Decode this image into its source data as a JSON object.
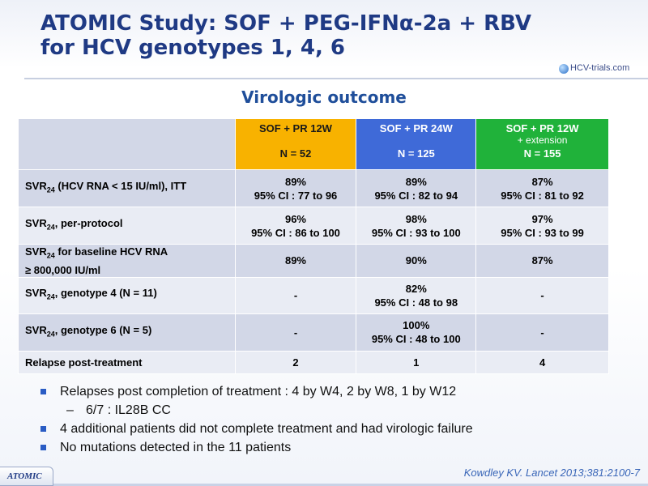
{
  "header": {
    "title_line1": "ATOMIC Study: SOF + PEG-IFNα-2a + RBV",
    "title_line2": "for HCV genotypes 1, 4, 6",
    "logo_text": "HCV-trials.com"
  },
  "subtitle": "Virologic outcome",
  "table": {
    "columns": [
      {
        "line1": "SOF + PR 12W",
        "line2": "",
        "n": "N = 52",
        "color": "#f8b200"
      },
      {
        "line1": "SOF + PR 24W",
        "line2": "",
        "n": "N = 125",
        "color": "#3f6ad8"
      },
      {
        "line1": "SOF + PR 12W",
        "line2": "+ extension",
        "n": "N = 155",
        "color": "#20b23a"
      }
    ],
    "rows": [
      {
        "label_main": "SVR",
        "label_sub": "24",
        "label_rest": " (HCV RNA < 15 IU/ml), ITT",
        "cells": [
          {
            "v": "89%",
            "ci": "95% CI : 77 to 96"
          },
          {
            "v": "89%",
            "ci": "95% CI : 82 to 94"
          },
          {
            "v": "87%",
            "ci": "95% CI : 81 to 92"
          }
        ]
      },
      {
        "label_main": "SVR",
        "label_sub": "24",
        "label_rest": ", per-protocol",
        "cells": [
          {
            "v": "96%",
            "ci": "95% CI : 86 to 100"
          },
          {
            "v": "98%",
            "ci": "95% CI : 93 to 100"
          },
          {
            "v": "97%",
            "ci": "95% CI : 93 to 99"
          }
        ]
      },
      {
        "label_main": "SVR",
        "label_sub": "24",
        "label_rest": " for baseline HCV RNA",
        "label_line2": "≥ 800,000 IU/ml",
        "cells": [
          {
            "v": "89%",
            "ci": ""
          },
          {
            "v": "90%",
            "ci": ""
          },
          {
            "v": "87%",
            "ci": ""
          }
        ]
      },
      {
        "label_main": "SVR",
        "label_sub": "24",
        "label_rest": ", genotype 4 (N = 11)",
        "cells": [
          {
            "v": "-",
            "ci": ""
          },
          {
            "v": "82%",
            "ci": "95% CI : 48 to 98"
          },
          {
            "v": "-",
            "ci": ""
          }
        ]
      },
      {
        "label_main": "SVR",
        "label_sub": "24",
        "label_rest": ", genotype 6 (N = 5)",
        "cells": [
          {
            "v": "-",
            "ci": ""
          },
          {
            "v": "100%",
            "ci": "95% CI : 48 to 100"
          },
          {
            "v": "-",
            "ci": ""
          }
        ]
      },
      {
        "label_main": "Relapse post-treatment",
        "label_sub": "",
        "label_rest": "",
        "cells": [
          {
            "v": "2",
            "ci": ""
          },
          {
            "v": "1",
            "ci": ""
          },
          {
            "v": "4",
            "ci": ""
          }
        ]
      }
    ]
  },
  "bullets": {
    "b1": "Relapses post completion of treatment : 4 by W4, 2 by W8, 1 by W12",
    "b1_sub": "6/7 : IL28B CC",
    "b2": "4 additional patients did not complete treatment and had virologic failure",
    "b3": "No mutations detected in the 11 patients"
  },
  "footer": {
    "tab_label": "ATOMIC",
    "citation": "Kowdley KV. Lancet 2013;381:2100-7"
  }
}
